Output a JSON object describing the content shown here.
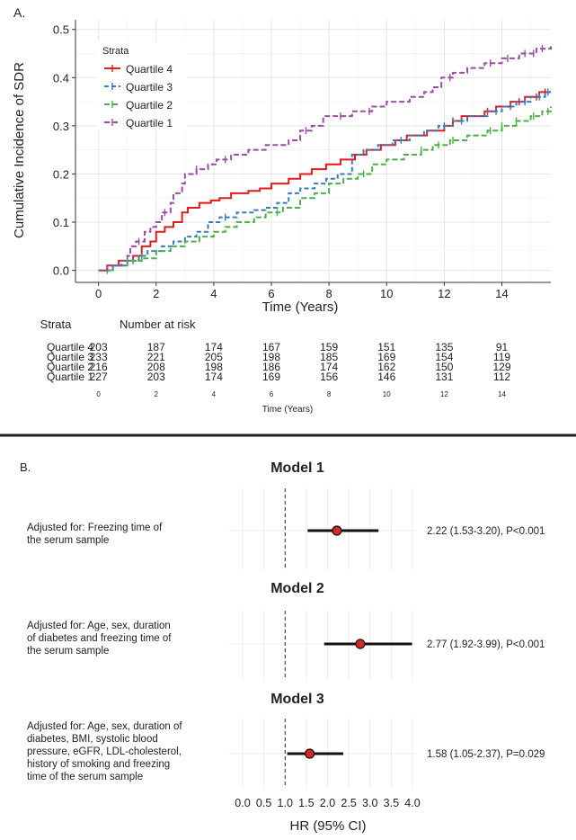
{
  "panel_a": {
    "label": "A.",
    "ylabel": "Cumulative Incidence of SDR",
    "xlabel": "Time (Years)",
    "legend_title": "Strata",
    "risk_table": {
      "strata_header": "Strata",
      "title": "Number at risk",
      "xlabel": "Time (Years)",
      "times": [
        "0",
        "2",
        "4",
        "6",
        "8",
        "10",
        "12",
        "14"
      ],
      "rows": [
        {
          "name": "Quartile 4",
          "counts": [
            "203",
            "187",
            "174",
            "167",
            "159",
            "151",
            "135",
            "91"
          ]
        },
        {
          "name": "Quartile 3",
          "counts": [
            "233",
            "221",
            "205",
            "198",
            "185",
            "169",
            "154",
            "119"
          ]
        },
        {
          "name": "Quartile 2",
          "counts": [
            "216",
            "208",
            "198",
            "186",
            "174",
            "162",
            "150",
            "129"
          ]
        },
        {
          "name": "Quartile 1",
          "counts": [
            "227",
            "203",
            "174",
            "169",
            "156",
            "146",
            "131",
            "112"
          ]
        }
      ]
    }
  },
  "panel_b": {
    "label": "B.",
    "xlabel": "HR (95% CI)",
    "models": [
      {
        "title": "Model 1",
        "adjust_lines": [
          "Adjusted for:  Freezing time of",
          "the serum sample"
        ],
        "result": "2.22 (1.53-3.20), P<0.001"
      },
      {
        "title": "Model 2",
        "adjust_lines": [
          "Adjusted for: Age, sex, duration",
          "of diabetes and freezing time of",
          "the serum sample"
        ],
        "result": "2.77 (1.92-3.99), P<0.001"
      },
      {
        "title": "Model 3",
        "adjust_lines": [
          "Adjusted for: Age, sex, duration of",
          "diabetes,    BMI,    systolic    blood",
          "pressure,   eGFR,   LDL-cholesterol,",
          "history of smoking and freezing",
          "time of the serum sample"
        ],
        "result": "1.58 (1.05-2.37), P=0.029"
      }
    ]
  },
  "chart_data": [
    {
      "type": "line",
      "xlabel": "Time (Years)",
      "ylabel": "Cumulative Incidence of SDR",
      "xlim": [
        -0.8,
        15.7
      ],
      "ylim": [
        -0.025,
        0.52
      ],
      "xticks": [
        0,
        2,
        4,
        6,
        8,
        10,
        12,
        14
      ],
      "yticks": [
        0.0,
        0.1,
        0.2,
        0.3,
        0.4,
        0.5
      ],
      "grid": true,
      "legend": "top-left",
      "legend_title": "Strata",
      "series": [
        {
          "name": "Quartile 4",
          "color": "#e41a1c",
          "dash": "none",
          "points": [
            [
              0,
              0
            ],
            [
              0.3,
              0.01
            ],
            [
              0.7,
              0.02
            ],
            [
              1.2,
              0.03
            ],
            [
              1.5,
              0.05
            ],
            [
              1.8,
              0.06
            ],
            [
              2.0,
              0.08
            ],
            [
              2.3,
              0.09
            ],
            [
              2.6,
              0.1
            ],
            [
              2.9,
              0.12
            ],
            [
              3.1,
              0.13
            ],
            [
              3.5,
              0.14
            ],
            [
              3.9,
              0.145
            ],
            [
              4.2,
              0.15
            ],
            [
              4.6,
              0.16
            ],
            [
              5.2,
              0.165
            ],
            [
              5.6,
              0.17
            ],
            [
              6.0,
              0.18
            ],
            [
              6.6,
              0.19
            ],
            [
              7.0,
              0.2
            ],
            [
              7.4,
              0.21
            ],
            [
              7.9,
              0.22
            ],
            [
              8.4,
              0.23
            ],
            [
              8.9,
              0.24
            ],
            [
              9.3,
              0.25
            ],
            [
              9.8,
              0.26
            ],
            [
              10.3,
              0.27
            ],
            [
              10.7,
              0.28
            ],
            [
              11.4,
              0.29
            ],
            [
              12.0,
              0.3
            ],
            [
              12.3,
              0.31
            ],
            [
              12.6,
              0.32
            ],
            [
              13.4,
              0.33
            ],
            [
              13.8,
              0.34
            ],
            [
              14.3,
              0.35
            ],
            [
              14.8,
              0.36
            ],
            [
              15.3,
              0.37
            ],
            [
              15.7,
              0.37
            ]
          ],
          "censor_x": [
            12.3,
            13.5,
            14.6,
            15.2,
            15.5
          ]
        },
        {
          "name": "Quartile 3",
          "color": "#377eb8",
          "dash": "5,3",
          "points": [
            [
              0,
              0
            ],
            [
              0.5,
              0.01
            ],
            [
              1.0,
              0.02
            ],
            [
              1.4,
              0.03
            ],
            [
              1.7,
              0.04
            ],
            [
              2.2,
              0.05
            ],
            [
              2.6,
              0.06
            ],
            [
              3.0,
              0.07
            ],
            [
              3.4,
              0.08
            ],
            [
              3.8,
              0.1
            ],
            [
              4.2,
              0.11
            ],
            [
              4.8,
              0.12
            ],
            [
              5.4,
              0.125
            ],
            [
              5.8,
              0.13
            ],
            [
              6.2,
              0.14
            ],
            [
              6.6,
              0.16
            ],
            [
              7.0,
              0.17
            ],
            [
              7.5,
              0.18
            ],
            [
              7.9,
              0.19
            ],
            [
              8.3,
              0.2
            ],
            [
              8.8,
              0.24
            ],
            [
              9.2,
              0.25
            ],
            [
              9.7,
              0.26
            ],
            [
              10.2,
              0.27
            ],
            [
              10.8,
              0.28
            ],
            [
              11.3,
              0.29
            ],
            [
              11.8,
              0.3
            ],
            [
              12.3,
              0.31
            ],
            [
              12.8,
              0.32
            ],
            [
              13.5,
              0.33
            ],
            [
              14.0,
              0.34
            ],
            [
              14.5,
              0.35
            ],
            [
              15.0,
              0.36
            ],
            [
              15.5,
              0.37
            ],
            [
              15.7,
              0.375
            ]
          ],
          "censor_x": [
            1.2,
            1.5,
            4.4,
            10.5,
            12.0,
            12.6,
            13.8,
            14.3,
            14.8,
            15.3,
            15.6
          ]
        },
        {
          "name": "Quartile 2",
          "color": "#4daf4a",
          "dash": "6,3",
          "points": [
            [
              0,
              0
            ],
            [
              0.5,
              0.01
            ],
            [
              1.0,
              0.02
            ],
            [
              1.5,
              0.025
            ],
            [
              2.0,
              0.04
            ],
            [
              2.5,
              0.05
            ],
            [
              3.0,
              0.06
            ],
            [
              3.5,
              0.07
            ],
            [
              4.0,
              0.08
            ],
            [
              4.4,
              0.09
            ],
            [
              4.8,
              0.1
            ],
            [
              5.4,
              0.11
            ],
            [
              5.8,
              0.12
            ],
            [
              6.4,
              0.13
            ],
            [
              7.0,
              0.15
            ],
            [
              7.5,
              0.16
            ],
            [
              8.0,
              0.18
            ],
            [
              8.5,
              0.19
            ],
            [
              9.0,
              0.2
            ],
            [
              9.5,
              0.22
            ],
            [
              10.0,
              0.23
            ],
            [
              10.6,
              0.24
            ],
            [
              11.2,
              0.25
            ],
            [
              11.6,
              0.26
            ],
            [
              12.2,
              0.27
            ],
            [
              12.8,
              0.28
            ],
            [
              13.5,
              0.29
            ],
            [
              14.0,
              0.3
            ],
            [
              14.5,
              0.31
            ],
            [
              15.0,
              0.32
            ],
            [
              15.4,
              0.33
            ],
            [
              15.7,
              0.34
            ]
          ],
          "censor_x": [
            0.3,
            1.0,
            1.5,
            6.2,
            9.2,
            11.2,
            11.8,
            12.3,
            13.6,
            14.0,
            14.5,
            15.1,
            15.6
          ]
        },
        {
          "name": "Quartile 1",
          "color": "#984ea3",
          "dash": "6,3",
          "points": [
            [
              0,
              0
            ],
            [
              0.3,
              0.01
            ],
            [
              0.8,
              0.02
            ],
            [
              1.0,
              0.03
            ],
            [
              1.1,
              0.05
            ],
            [
              1.3,
              0.06
            ],
            [
              1.6,
              0.08
            ],
            [
              1.8,
              0.09
            ],
            [
              2.0,
              0.1
            ],
            [
              2.2,
              0.12
            ],
            [
              2.5,
              0.14
            ],
            [
              2.6,
              0.16
            ],
            [
              2.9,
              0.18
            ],
            [
              3.0,
              0.2
            ],
            [
              3.4,
              0.21
            ],
            [
              3.8,
              0.22
            ],
            [
              4.1,
              0.23
            ],
            [
              4.6,
              0.24
            ],
            [
              5.2,
              0.25
            ],
            [
              5.8,
              0.26
            ],
            [
              6.6,
              0.27
            ],
            [
              7.0,
              0.29
            ],
            [
              7.4,
              0.3
            ],
            [
              7.8,
              0.32
            ],
            [
              8.8,
              0.33
            ],
            [
              9.5,
              0.34
            ],
            [
              10.0,
              0.35
            ],
            [
              10.8,
              0.36
            ],
            [
              11.3,
              0.37
            ],
            [
              11.6,
              0.38
            ],
            [
              11.9,
              0.4
            ],
            [
              12.3,
              0.41
            ],
            [
              12.8,
              0.42
            ],
            [
              13.4,
              0.43
            ],
            [
              14.0,
              0.44
            ],
            [
              14.6,
              0.45
            ],
            [
              15.2,
              0.46
            ],
            [
              15.7,
              0.465
            ]
          ],
          "censor_x": [
            1.4,
            2.3,
            3.4,
            4.4,
            7.2,
            8.4,
            9.4,
            12.2,
            13.6,
            14.2,
            14.8,
            15.1,
            15.4
          ]
        }
      ]
    },
    {
      "type": "scatter",
      "subtype": "forest",
      "xlabel": "HR (95% CI)",
      "xlim": [
        0.0,
        4.0
      ],
      "xticks": [
        0.0,
        0.5,
        1.0,
        1.5,
        2.0,
        2.5,
        3.0,
        3.5,
        4.0
      ],
      "reference_line": 1.0,
      "series": [
        {
          "name": "Model 1",
          "hr": 2.22,
          "lower": 1.53,
          "upper": 3.2
        },
        {
          "name": "Model 2",
          "hr": 2.77,
          "lower": 1.92,
          "upper": 3.99
        },
        {
          "name": "Model 3",
          "hr": 1.58,
          "lower": 1.05,
          "upper": 2.37
        }
      ]
    }
  ]
}
